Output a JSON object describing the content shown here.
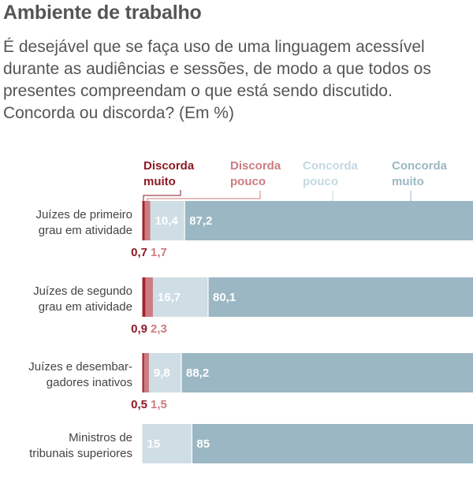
{
  "chart_data": {
    "type": "bar",
    "stacked": true,
    "orientation": "horizontal",
    "title": "Ambiente de trabalho",
    "subtitle": "É desejável que se faça uso de uma linguagem acessível durante as audiências e sessões, de modo a que todos os presentes compreendam o que está sendo discutido. Concorda ou discorda? (Em %)",
    "xlim": [
      0,
      100
    ],
    "categories": [
      [
        "Juízes de primeiro",
        "grau em atividade"
      ],
      [
        "Juízes de segundo",
        "grau em atividade"
      ],
      [
        "Juízes e desembar-",
        "gadores inativos"
      ],
      [
        "Ministros de",
        "tribunais superiores"
      ]
    ],
    "series": [
      {
        "name": [
          "Discorda",
          "muito"
        ],
        "color": "#a3222c",
        "values": [
          0.7,
          0.9,
          0.5,
          0
        ],
        "labels": [
          "0,7",
          "0,9",
          "0,5",
          ""
        ]
      },
      {
        "name": [
          "Discorda",
          "pouco"
        ],
        "color": "#cc7c80",
        "values": [
          1.7,
          2.3,
          1.5,
          0
        ],
        "labels": [
          "1,7",
          "2,3",
          "1,5",
          ""
        ]
      },
      {
        "name": [
          "Concorda",
          "pouco"
        ],
        "color": "#cfdde4",
        "values": [
          10.4,
          16.7,
          9.8,
          15
        ],
        "labels": [
          "10,4",
          "16,7",
          "9,8",
          "15"
        ]
      },
      {
        "name": [
          "Concorda",
          "muito"
        ],
        "color": "#9ab7c3",
        "values": [
          87.2,
          80.1,
          88.2,
          85
        ],
        "labels": [
          "87,2",
          "80,1",
          "88,2",
          "85"
        ]
      }
    ]
  }
}
